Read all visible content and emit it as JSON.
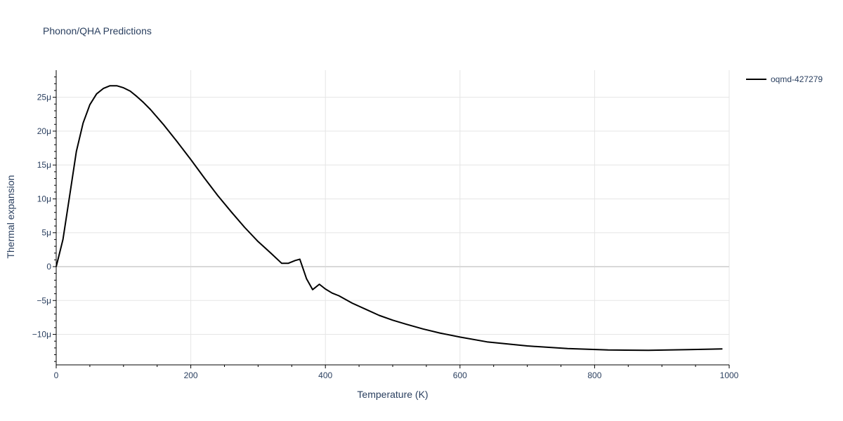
{
  "chart_data": {
    "type": "line",
    "title": "Phonon/QHA Predictions",
    "xlabel": "Temperature (K)",
    "ylabel": "Thermal expansion",
    "xlim": [
      0,
      1000
    ],
    "ylim": [
      -14.5,
      29
    ],
    "x_ticks": [
      0,
      200,
      400,
      600,
      800,
      1000
    ],
    "x_tick_labels": [
      "0",
      "200",
      "400",
      "600",
      "800",
      "1000"
    ],
    "y_ticks": [
      -10,
      -5,
      0,
      5,
      10,
      15,
      20,
      25
    ],
    "y_tick_labels": [
      "−10μ",
      "−5μ",
      "0",
      "5μ",
      "10μ",
      "15μ",
      "20μ",
      "25μ"
    ],
    "grid": true,
    "legend_position": "top-right",
    "colors": {
      "line": "#000000",
      "grid": "#e5e5e5",
      "zero_line": "#d9d9d9",
      "text": "#2a3f5f"
    },
    "series": [
      {
        "name": "oqmd-427279",
        "x": [
          0,
          10,
          20,
          30,
          40,
          50,
          60,
          70,
          80,
          90,
          100,
          110,
          120,
          130,
          140,
          160,
          180,
          200,
          220,
          240,
          260,
          280,
          300,
          320,
          335,
          345,
          355,
          362,
          372,
          381,
          391,
          400,
          410,
          420,
          440,
          460,
          480,
          500,
          520,
          545,
          570,
          600,
          640,
          700,
          760,
          820,
          880,
          940,
          990
        ],
        "y": [
          0,
          4,
          10.5,
          17,
          21.2,
          23.9,
          25.5,
          26.3,
          26.7,
          26.7,
          26.4,
          25.9,
          25.1,
          24.2,
          23.2,
          20.9,
          18.4,
          15.8,
          13.1,
          10.5,
          8.1,
          5.8,
          3.7,
          1.9,
          0.5,
          0.5,
          0.9,
          1.1,
          -1.8,
          -3.4,
          -2.6,
          -3.3,
          -3.9,
          -4.3,
          -5.4,
          -6.3,
          -7.2,
          -7.9,
          -8.5,
          -9.2,
          -9.8,
          -10.4,
          -11.1,
          -11.7,
          -12.1,
          -12.3,
          -12.35,
          -12.25,
          -12.15
        ]
      }
    ]
  }
}
